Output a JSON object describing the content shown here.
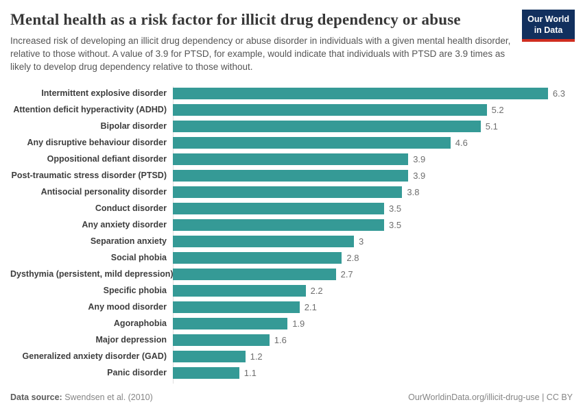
{
  "header": {
    "title": "Mental health as a risk factor for illicit drug dependency or abuse",
    "subtitle": "Increased risk of developing an illicit drug dependency or abuse disorder in individuals with a given mental health disorder, relative to those without. A value of 3.9 for PTSD, for example, would indicate that individuals with PTSD are 3.9 times as likely to develop drug dependency relative to those without.",
    "logo": {
      "line1": "Our World",
      "line2": "in Data",
      "background_color": "#12305e",
      "accent_color": "#cf2d20"
    }
  },
  "chart_data": {
    "type": "bar",
    "orientation": "horizontal",
    "title": "Mental health as a risk factor for illicit drug dependency or abuse",
    "categories": [
      "Intermittent explosive disorder",
      "Attention deficit hyperactivity (ADHD)",
      "Bipolar disorder",
      "Any disruptive behaviour disorder",
      "Oppositional defiant disorder",
      "Post-traumatic stress disorder (PTSD)",
      "Antisocial personality disorder",
      "Conduct disorder",
      "Any anxiety disorder",
      "Separation anxiety",
      "Social phobia",
      "Dysthymia (persistent, mild depression)",
      "Specific phobia",
      "Any mood disorder",
      "Agoraphobia",
      "Major depression",
      "Generalized anxiety disorder (GAD)",
      "Panic disorder"
    ],
    "values": [
      6.3,
      5.2,
      5.1,
      4.6,
      3.9,
      3.9,
      3.8,
      3.5,
      3.5,
      3,
      2.8,
      2.7,
      2.2,
      2.1,
      1.9,
      1.6,
      1.2,
      1.1
    ],
    "xlabel": "",
    "ylabel": "",
    "xlim": [
      0,
      6.5
    ],
    "grid": false,
    "legend": false,
    "bar_color": "#359a96",
    "value_labels_shown": true
  },
  "footer": {
    "source_label": "Data source:",
    "source_value": "Swendsen et al. (2010)",
    "credit": "OurWorldinData.org/illicit-drug-use | CC BY"
  }
}
